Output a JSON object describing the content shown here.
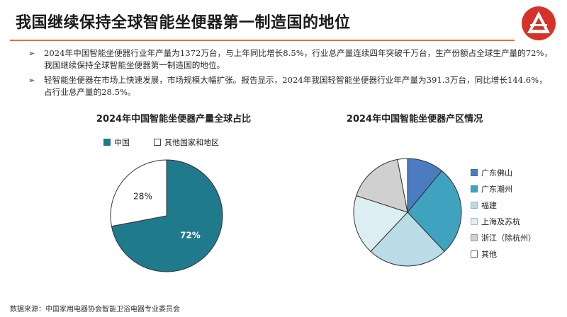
{
  "header": {
    "title": "我国继续保持全球智能坐便器第一制造国的地位"
  },
  "bullets": [
    "2024年中国智能坐便器行业年产量为1372万台，与上年同比增长8.5%，行业总产量连续四年突破千万台，生产份额占全球生产量的72%，我国继续保持全球智能坐便器第一制造国的地位。",
    "轻智能坐便器在市场上快速发展，市场规模大幅扩张。报告显示，2024年我国轻智能坐便器行业年产量为391.3万台，同比增长144.6%，占行业总产量的28.5%。"
  ],
  "colors": {
    "accent": "#f06a3d",
    "logo_red": "#d7322a"
  },
  "chart_data": [
    {
      "type": "pie",
      "title": "2024年中国智能坐便器产量全球占比",
      "legend_position": "top",
      "categories": [
        "中国",
        "其他国家和地区"
      ],
      "values": [
        72,
        28
      ],
      "data_labels": [
        "72%",
        "28%"
      ],
      "colors": [
        "#1f7a8c",
        "#ffffff"
      ]
    },
    {
      "type": "pie",
      "title": "2024年中国智能坐便器产区情况",
      "legend_position": "right",
      "categories": [
        "广东佛山",
        "广东潮州",
        "福建",
        "上海及苏杭",
        "浙江（除杭州）",
        "其他"
      ],
      "values": [
        11,
        27,
        24,
        18,
        17,
        3
      ],
      "colors": [
        "#4a7cbf",
        "#3fa3bf",
        "#b9dce6",
        "#ddeef2",
        "#d0d0d0",
        "#ffffff"
      ]
    }
  ],
  "footer": {
    "source": "数据来源：中国家用电器协会智能卫浴电器专业委员会"
  }
}
